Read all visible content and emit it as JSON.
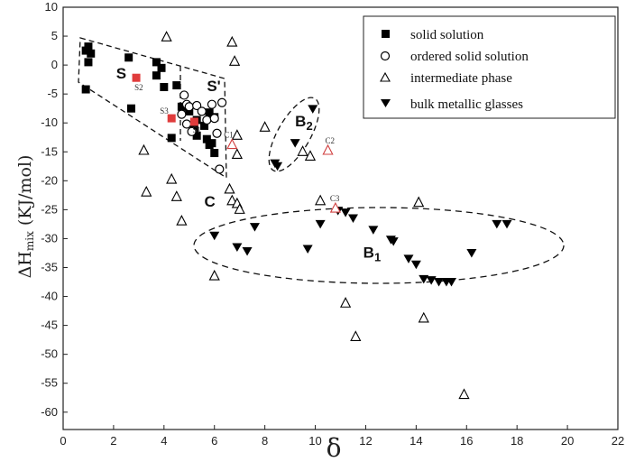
{
  "chart_data": {
    "type": "scatter",
    "xlabel": "δ",
    "ylabel_main": "ΔH",
    "ylabel_sub": "mix",
    "ylabel_unit": "(KJ/mol)",
    "xlim": [
      0,
      22
    ],
    "ylim": [
      -63,
      10
    ],
    "xticks": [
      0,
      2,
      4,
      6,
      8,
      10,
      12,
      14,
      16,
      18,
      20,
      22
    ],
    "yticks": [
      10,
      5,
      0,
      -5,
      -10,
      -15,
      -20,
      -25,
      -30,
      -35,
      -40,
      -45,
      -50,
      -55,
      -60
    ],
    "legend_position": "top-right",
    "series": [
      {
        "name": "solid solution",
        "marker": "filled-square",
        "color": "#000000",
        "points": [
          [
            0.9,
            2.5
          ],
          [
            1.0,
            3.2
          ],
          [
            1.1,
            2.0
          ],
          [
            1.0,
            0.5
          ],
          [
            0.9,
            -4.2
          ],
          [
            2.6,
            1.3
          ],
          [
            2.7,
            -7.5
          ],
          [
            3.7,
            0.5
          ],
          [
            3.9,
            -0.5
          ],
          [
            3.7,
            -1.8
          ],
          [
            4.0,
            -3.8
          ],
          [
            4.3,
            -12.6
          ],
          [
            4.5,
            -3.5
          ],
          [
            4.7,
            -7.2
          ],
          [
            5.0,
            -8.0
          ],
          [
            5.3,
            -9.5
          ],
          [
            5.2,
            -11.0
          ],
          [
            5.3,
            -12.2
          ],
          [
            5.6,
            -10.5
          ],
          [
            5.7,
            -12.8
          ],
          [
            5.8,
            -13.8
          ],
          [
            5.9,
            -13.5
          ],
          [
            6.0,
            -15.2
          ],
          [
            5.8,
            -8.2
          ],
          [
            6.0,
            -9.0
          ]
        ]
      },
      {
        "name": "ordered solid solution",
        "marker": "open-circle",
        "color": "#000000",
        "points": [
          [
            4.8,
            -5.2
          ],
          [
            4.9,
            -6.8
          ],
          [
            5.0,
            -7.2
          ],
          [
            4.7,
            -8.5
          ],
          [
            4.9,
            -10.2
          ],
          [
            5.3,
            -7.0
          ],
          [
            5.5,
            -8.0
          ],
          [
            5.7,
            -9.5
          ],
          [
            5.9,
            -6.8
          ],
          [
            6.0,
            -9.2
          ],
          [
            6.1,
            -11.8
          ],
          [
            6.3,
            -6.5
          ],
          [
            6.2,
            -18.0
          ],
          [
            5.1,
            -11.5
          ]
        ]
      },
      {
        "name": "intermediate phase",
        "marker": "open-triangle",
        "color": "#000000",
        "points": [
          [
            4.1,
            4.8
          ],
          [
            6.7,
            3.9
          ],
          [
            6.8,
            0.6
          ],
          [
            6.9,
            -12.2
          ],
          [
            6.9,
            -15.5
          ],
          [
            8.0,
            -10.8
          ],
          [
            9.5,
            -15.0
          ],
          [
            9.8,
            -15.8
          ],
          [
            3.2,
            -14.8
          ],
          [
            3.3,
            -22.0
          ],
          [
            4.3,
            -19.8
          ],
          [
            4.5,
            -22.8
          ],
          [
            4.7,
            -27.0
          ],
          [
            6.6,
            -21.5
          ],
          [
            6.7,
            -23.5
          ],
          [
            6.9,
            -24.0
          ],
          [
            7.0,
            -25.0
          ],
          [
            6.0,
            -36.5
          ],
          [
            10.2,
            -23.5
          ],
          [
            11.2,
            -41.2
          ],
          [
            11.6,
            -47.0
          ],
          [
            14.1,
            -23.8
          ],
          [
            14.3,
            -43.8
          ],
          [
            15.9,
            -57.0
          ]
        ]
      },
      {
        "name": "bulk metallic glasses",
        "marker": "filled-down-triangle",
        "color": "#000000",
        "points": [
          [
            9.9,
            -7.6
          ],
          [
            9.2,
            -13.5
          ],
          [
            8.4,
            -17.0
          ],
          [
            8.5,
            -17.5
          ],
          [
            6.0,
            -29.5
          ],
          [
            6.9,
            -31.5
          ],
          [
            7.3,
            -32.2
          ],
          [
            7.6,
            -28.0
          ],
          [
            9.7,
            -31.8
          ],
          [
            10.2,
            -27.5
          ],
          [
            10.9,
            -25.2
          ],
          [
            11.2,
            -25.5
          ],
          [
            11.5,
            -26.5
          ],
          [
            12.3,
            -28.5
          ],
          [
            13.0,
            -30.2
          ],
          [
            13.1,
            -30.5
          ],
          [
            13.7,
            -33.5
          ],
          [
            14.0,
            -34.5
          ],
          [
            14.3,
            -37.0
          ],
          [
            14.6,
            -37.2
          ],
          [
            14.9,
            -37.5
          ],
          [
            15.2,
            -37.5
          ],
          [
            15.4,
            -37.5
          ],
          [
            16.2,
            -32.5
          ],
          [
            17.2,
            -27.5
          ],
          [
            17.6,
            -27.5
          ]
        ]
      }
    ],
    "highlighted_points": [
      {
        "label": "S1",
        "marker": "filled-square",
        "color": "#e03c3c",
        "x": 5.2,
        "y": -9.8
      },
      {
        "label": "S2",
        "marker": "filled-square",
        "color": "#e03c3c",
        "x": 2.9,
        "y": -2.2
      },
      {
        "label": "S3",
        "marker": "filled-square",
        "color": "#e03c3c",
        "x": 4.3,
        "y": -9.2
      },
      {
        "label": "C1",
        "marker": "open-triangle",
        "color": "#d04040",
        "x": 6.7,
        "y": -13.8
      },
      {
        "label": "C2",
        "marker": "open-triangle",
        "color": "#d04040",
        "x": 10.5,
        "y": -14.8
      },
      {
        "label": "C3",
        "marker": "open-triangle",
        "color": "#d04040",
        "x": 10.8,
        "y": -24.8
      }
    ],
    "regions": [
      {
        "label": "S",
        "subscript": "",
        "x": 2.1,
        "y": -2.3
      },
      {
        "label": "S",
        "subscript": "'",
        "x": 5.7,
        "y": -4.5
      },
      {
        "label": "B",
        "subscript": "2",
        "x": 9.2,
        "y": -10.6
      },
      {
        "label": "C",
        "subscript": "",
        "x": 5.6,
        "y": -24.5
      },
      {
        "label": "B",
        "subscript": "1",
        "x": 11.9,
        "y": -33.3
      }
    ]
  }
}
